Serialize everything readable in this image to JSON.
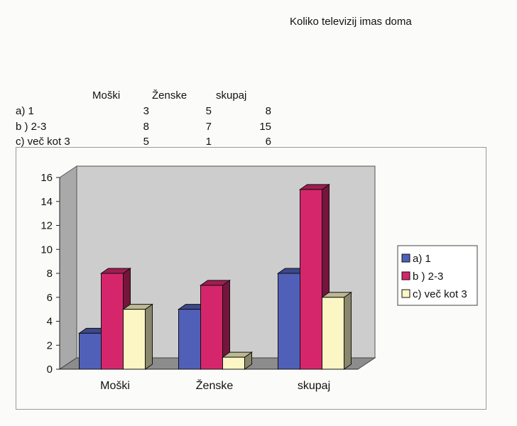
{
  "title": "Koliko televizij imas doma",
  "table": {
    "headers": [
      "Moški",
      "Ženske",
      "skupaj"
    ],
    "rows": [
      {
        "label": "a) 1",
        "values": [
          "3",
          "5",
          "8"
        ]
      },
      {
        "label": "b ) 2-3",
        "values": [
          "8",
          "7",
          "15"
        ]
      },
      {
        "label": "c) več kot 3",
        "values": [
          "5",
          "1",
          "6"
        ]
      }
    ]
  },
  "chart_data": {
    "type": "bar",
    "style": "3d-clustered",
    "categories": [
      "Moški",
      "Ženske",
      "skupaj"
    ],
    "series": [
      {
        "name": "a) 1",
        "values": [
          3,
          5,
          8
        ],
        "color": "#5060b8"
      },
      {
        "name": "b ) 2-3",
        "values": [
          8,
          7,
          15
        ],
        "color": "#d5266c"
      },
      {
        "name": "c) več kot 3",
        "values": [
          5,
          1,
          6
        ],
        "color": "#fbf6c4"
      }
    ],
    "yticks": [
      "0",
      "2",
      "4",
      "6",
      "8",
      "10",
      "12",
      "14",
      "16"
    ],
    "ylim": [
      0,
      16
    ],
    "grid": false,
    "legend_position": "right",
    "wall_color": "#cdcdcd",
    "floor_color": "#8c8c8c"
  }
}
